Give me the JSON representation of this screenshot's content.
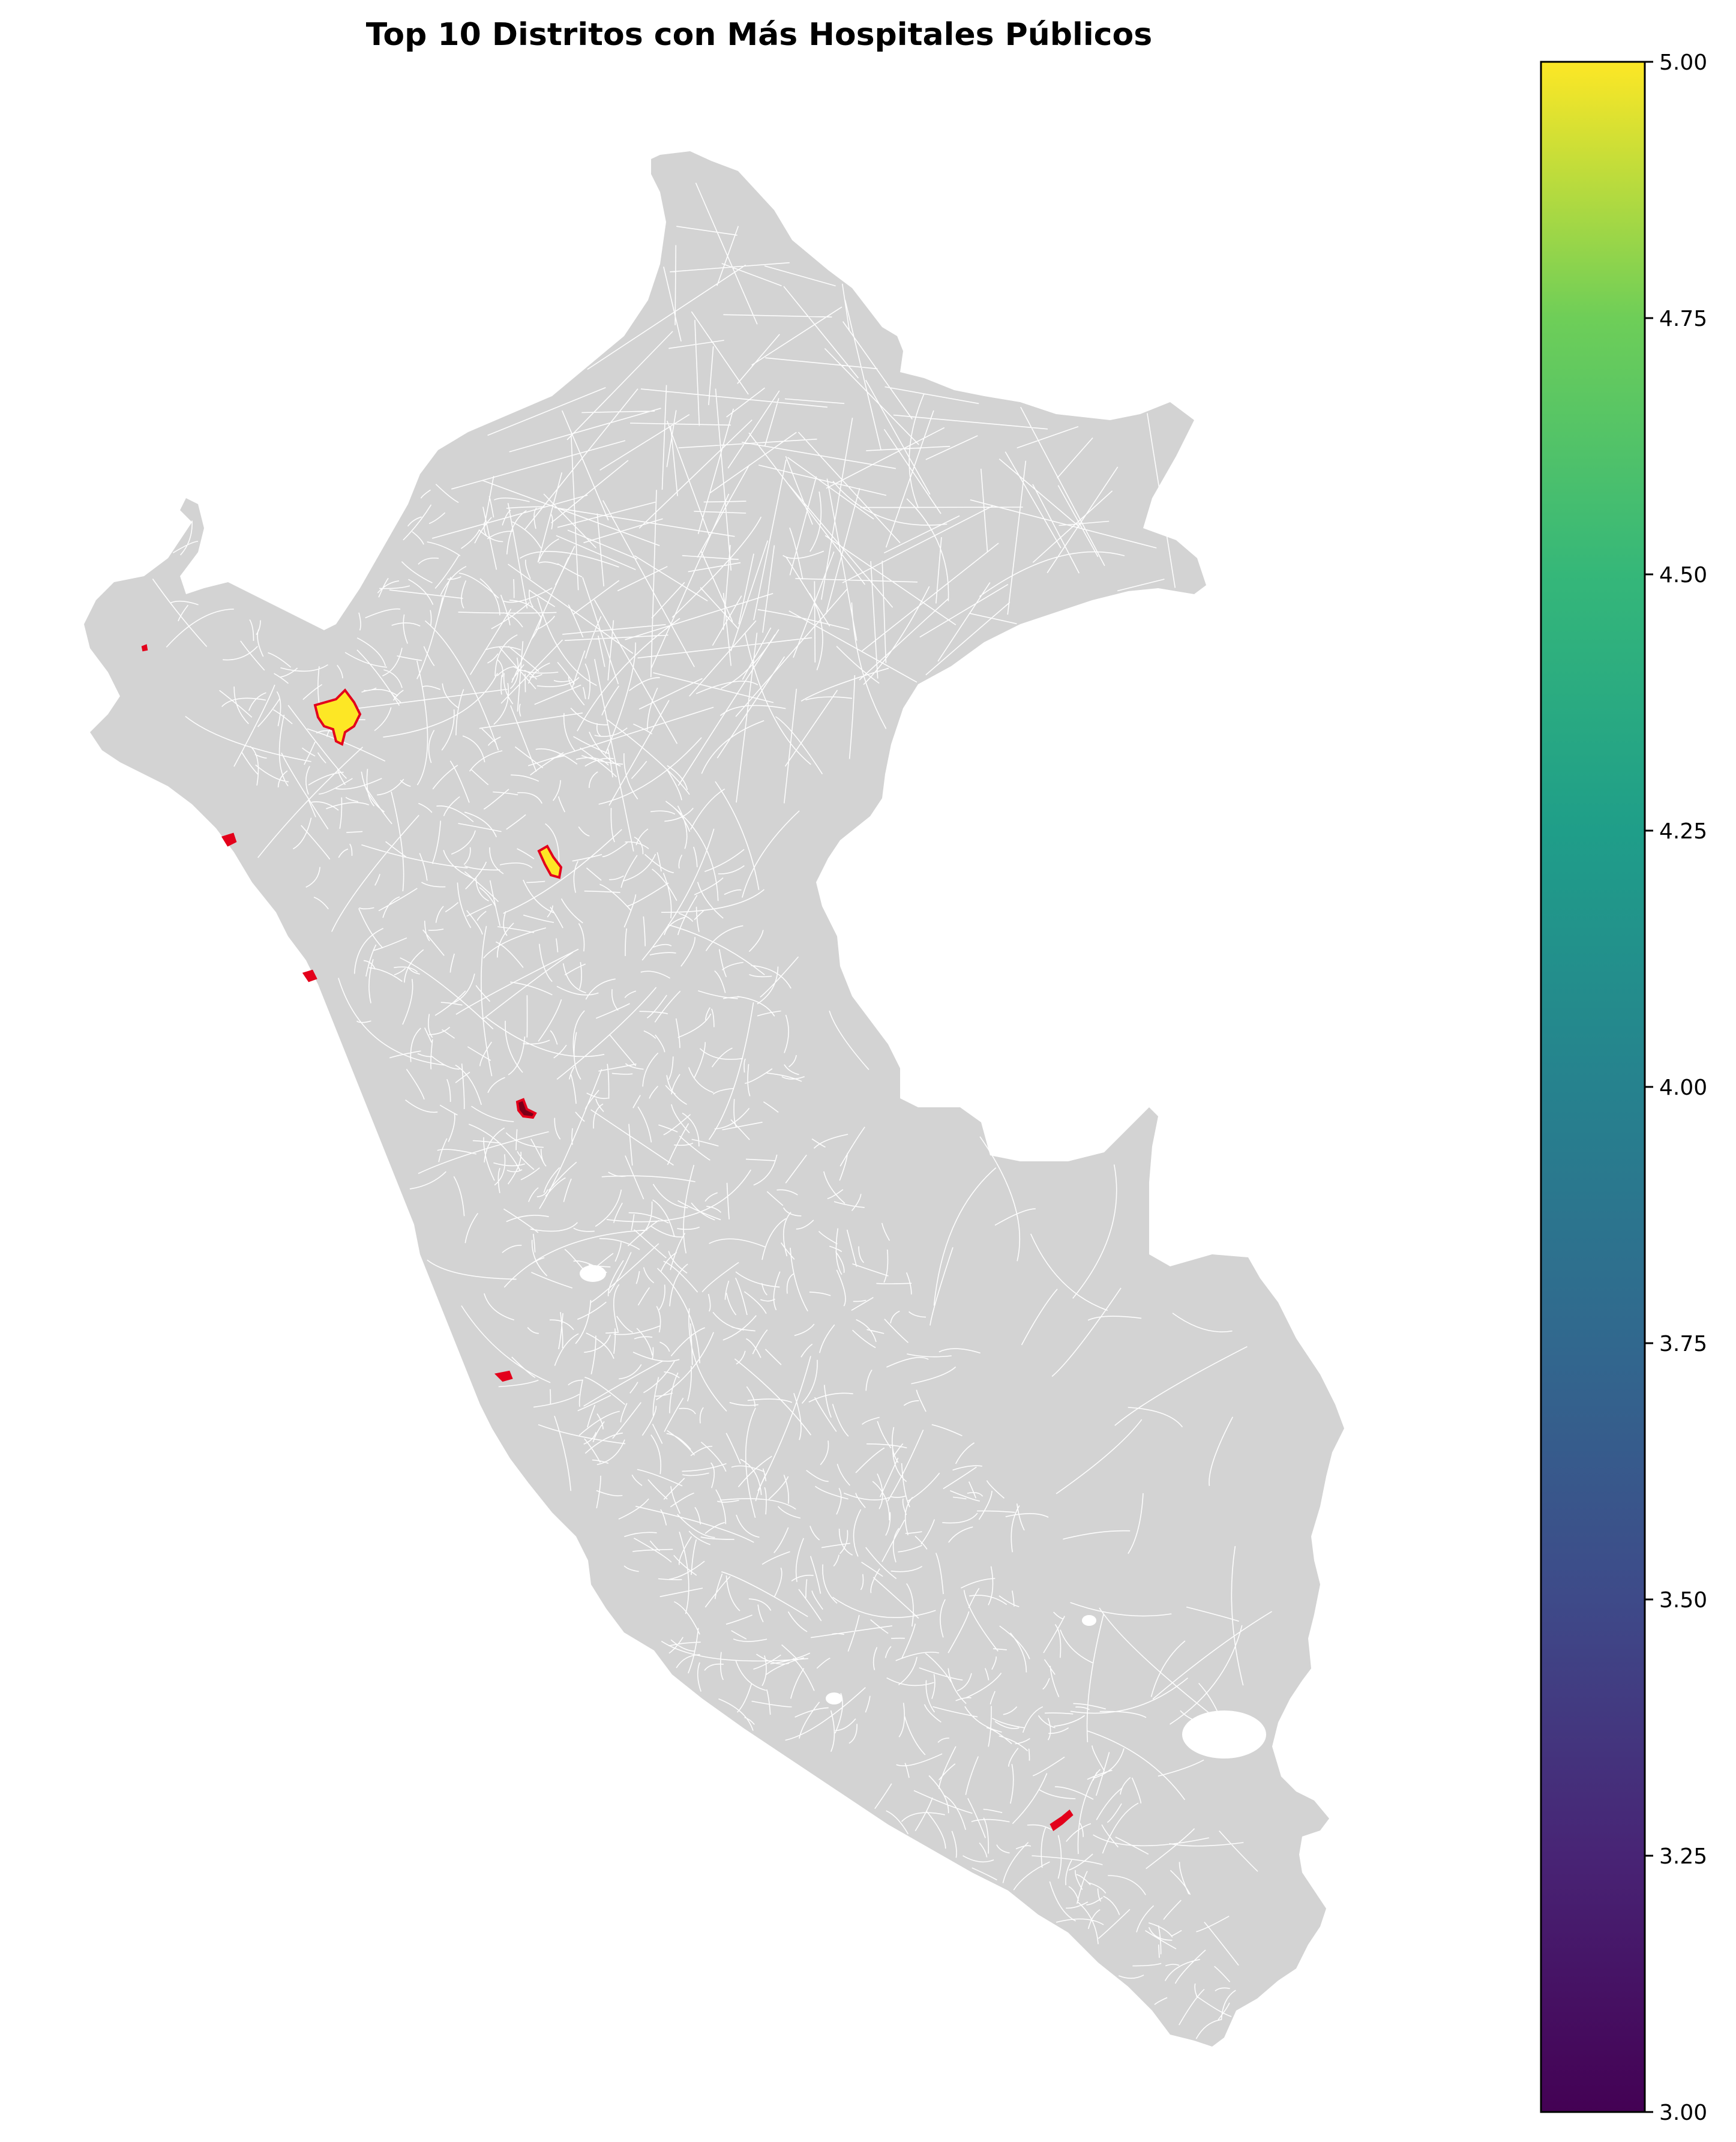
{
  "title": "Top 10 Distritos con Más Hospitales Públicos",
  "colors": {
    "land": "#d3d3d3",
    "district_border": "#ffffff",
    "highlight_edge": "#e3001b",
    "dark_fill": "#7a0018"
  },
  "colorbar": {
    "colormap": "viridis",
    "min": 3.0,
    "max": 5.0,
    "ticks": [
      "3.00",
      "3.25",
      "3.50",
      "3.75",
      "4.00",
      "4.25",
      "4.50",
      "4.75",
      "5.00"
    ]
  },
  "highlighted_districts": [
    {
      "value": 5,
      "shape": "large-north"
    },
    {
      "value": 5,
      "shape": "north-central"
    },
    {
      "value": 3,
      "shape": "coastal-north"
    },
    {
      "value": 3,
      "shape": "coastal-mid"
    },
    {
      "value": 3,
      "shape": "andes-central"
    },
    {
      "value": 3,
      "shape": "coast-lima"
    },
    {
      "value": 3,
      "shape": "south-arequipa"
    },
    {
      "value": 3,
      "shape": "far-northwest"
    }
  ]
}
